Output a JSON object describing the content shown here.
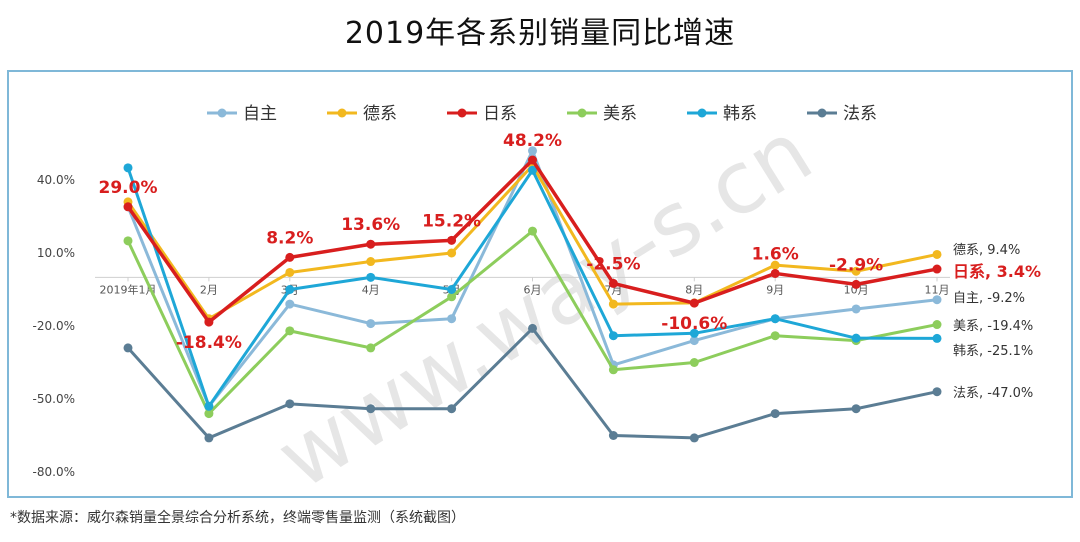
{
  "title": "2019年各系别销量同比增速",
  "source": "*数据来源：威尔森销量全景综合分析系统，终端零售量监测（系统截图）",
  "watermark": "www.way-s.cn",
  "chart_data": {
    "type": "line",
    "categories": [
      "2019年1月",
      "2月",
      "3月",
      "4月",
      "5月",
      "6月",
      "7月",
      "8月",
      "9月",
      "10月",
      "11月"
    ],
    "y_ticks": [
      "40.0%",
      "10.0%",
      "-20.0%",
      "-50.0%",
      "-80.0%"
    ],
    "ylim": [
      -80,
      40
    ],
    "legend_position": "top",
    "grid": false,
    "series": [
      {
        "name": "自主",
        "color": "#8bb9d9",
        "values": [
          29.0,
          -53.0,
          -11.0,
          -19.0,
          -17.0,
          52.0,
          -36.0,
          -26.0,
          -17.0,
          -13.0,
          -9.2
        ],
        "end_label": "自主, -9.2%"
      },
      {
        "name": "德系",
        "color": "#f2b81f",
        "values": [
          31.0,
          -17.0,
          2.0,
          6.5,
          10.0,
          46.0,
          -11.0,
          -10.5,
          5.0,
          2.5,
          9.4
        ],
        "end_label": "德系, 9.4%"
      },
      {
        "name": "日系",
        "color": "#d81e1e",
        "values": [
          29.0,
          -18.4,
          8.2,
          13.6,
          15.2,
          48.2,
          -2.5,
          -10.6,
          1.6,
          -2.9,
          3.4
        ],
        "end_label": "日系, 3.4%",
        "point_labels": [
          "29.0%",
          "-18.4%",
          "8.2%",
          "13.6%",
          "15.2%",
          "48.2%",
          "-2.5%",
          "-10.6%",
          "1.6%",
          "-2.9%",
          ""
        ]
      },
      {
        "name": "美系",
        "color": "#8dcd5c",
        "values": [
          15.0,
          -56.0,
          -22.0,
          -29.0,
          -8.0,
          19.0,
          -38.0,
          -35.0,
          -24.0,
          -26.0,
          -19.4
        ],
        "end_label": "美系, -19.4%"
      },
      {
        "name": "韩系",
        "color": "#1ea7d7",
        "values": [
          45.0,
          -53.0,
          -5.0,
          0.0,
          -5.0,
          44.0,
          -24.0,
          -23.0,
          -17.0,
          -25.0,
          -25.1
        ],
        "end_label": "韩系, -25.1%"
      },
      {
        "name": "法系",
        "color": "#5b7d94",
        "values": [
          -29.0,
          -66.0,
          -52.0,
          -54.0,
          -54.0,
          -21.0,
          -65.0,
          -66.0,
          -56.0,
          -54.0,
          -47.0
        ],
        "end_label": "法系, -47.0%"
      }
    ]
  }
}
